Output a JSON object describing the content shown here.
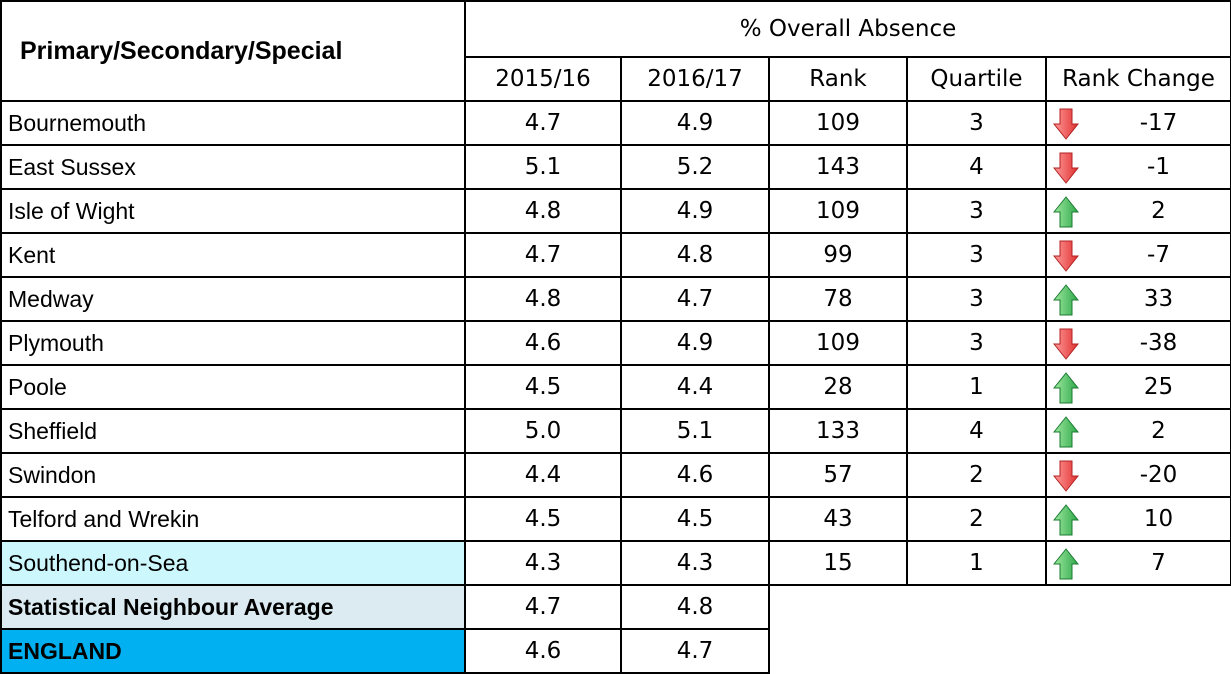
{
  "header": {
    "title": "Primary/Secondary/Special",
    "group": "% Overall Absence",
    "columns": [
      "2015/16",
      "2016/17",
      "Rank",
      "Quartile",
      "Rank Change"
    ]
  },
  "rows": [
    {
      "name": "Bournemouth",
      "values": [
        "4.7",
        "4.9",
        "109",
        "3",
        "-17"
      ]
    },
    {
      "name": "East Sussex",
      "values": [
        "5.1",
        "5.2",
        "143",
        "4",
        "-1"
      ]
    },
    {
      "name": "Isle of Wight",
      "values": [
        "4.8",
        "4.9",
        "109",
        "3",
        "2"
      ]
    },
    {
      "name": "Kent",
      "values": [
        "4.7",
        "4.8",
        "99",
        "3",
        "-7"
      ]
    },
    {
      "name": "Medway",
      "values": [
        "4.8",
        "4.7",
        "78",
        "3",
        "33"
      ]
    },
    {
      "name": "Plymouth",
      "values": [
        "4.6",
        "4.9",
        "109",
        "3",
        "-38"
      ]
    },
    {
      "name": "Poole",
      "values": [
        "4.5",
        "4.4",
        "28",
        "1",
        "25"
      ]
    },
    {
      "name": "Sheffield",
      "values": [
        "5.0",
        "5.1",
        "133",
        "4",
        "2"
      ]
    },
    {
      "name": "Swindon",
      "values": [
        "4.4",
        "4.6",
        "57",
        "2",
        "-20"
      ]
    },
    {
      "name": "Telford and Wrekin",
      "values": [
        "4.5",
        "4.5",
        "43",
        "2",
        "10"
      ]
    },
    {
      "name": "Southend-on-Sea",
      "values": [
        "4.3",
        "4.3",
        "15",
        "1",
        "7"
      ]
    },
    {
      "name": "Statistical Neighbour Average",
      "values": [
        "4.7",
        "4.8"
      ]
    },
    {
      "name": "ENGLAND",
      "values": [
        "4.6",
        "4.7"
      ]
    }
  ]
}
